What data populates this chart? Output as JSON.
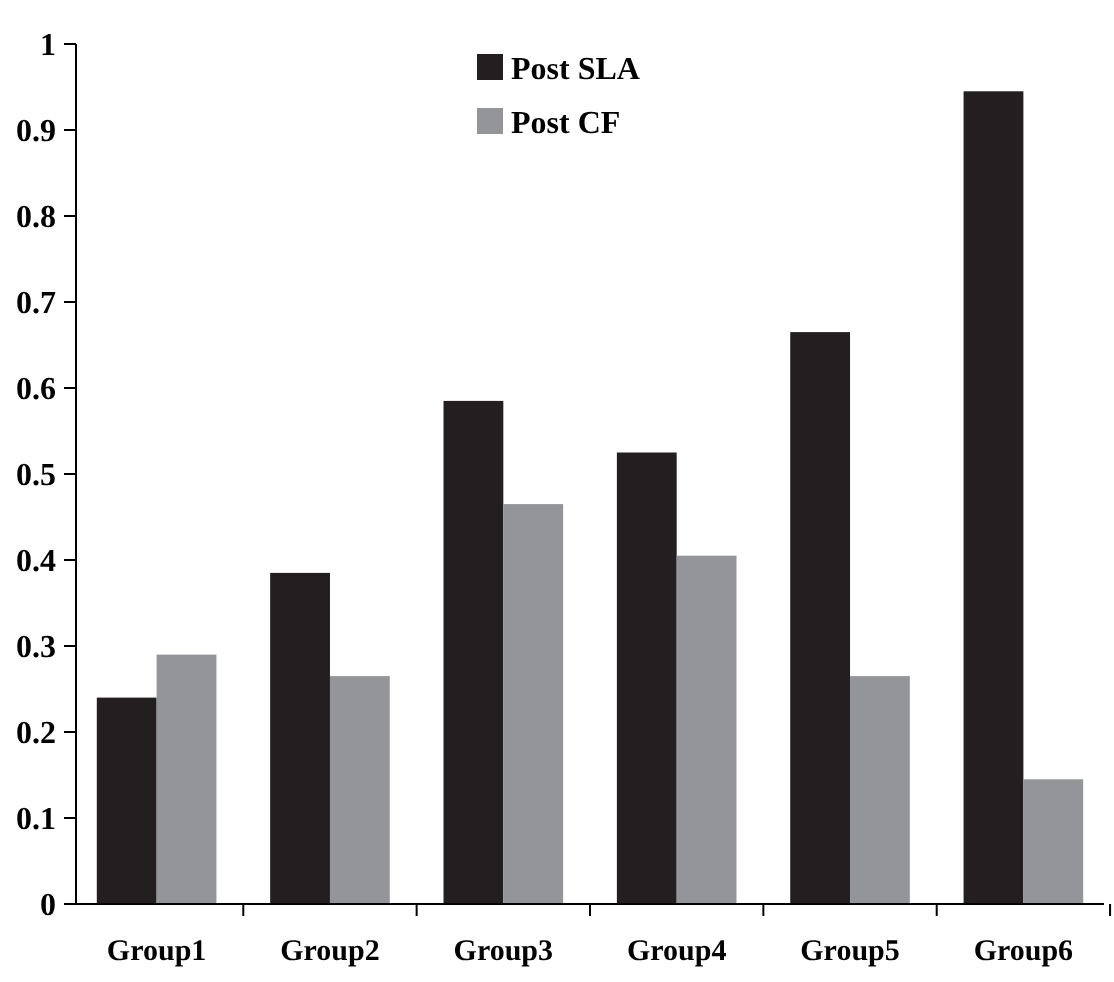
{
  "chart_data": {
    "type": "bar",
    "categories": [
      "Group1",
      "Group2",
      "Group3",
      "Group4",
      "Group5",
      "Group6"
    ],
    "series": [
      {
        "name": "Post SLA",
        "color": "#231f20",
        "values": [
          0.24,
          0.385,
          0.585,
          0.525,
          0.665,
          0.945
        ]
      },
      {
        "name": "Post CF",
        "color": "#939598",
        "values": [
          0.29,
          0.265,
          0.465,
          0.405,
          0.265,
          0.145
        ]
      }
    ],
    "ylim": [
      0,
      1
    ],
    "yticks": [
      0,
      0.1,
      0.2,
      0.3,
      0.4,
      0.5,
      0.6,
      0.7,
      0.8,
      0.9,
      1
    ],
    "grid": false,
    "legend": "top"
  }
}
